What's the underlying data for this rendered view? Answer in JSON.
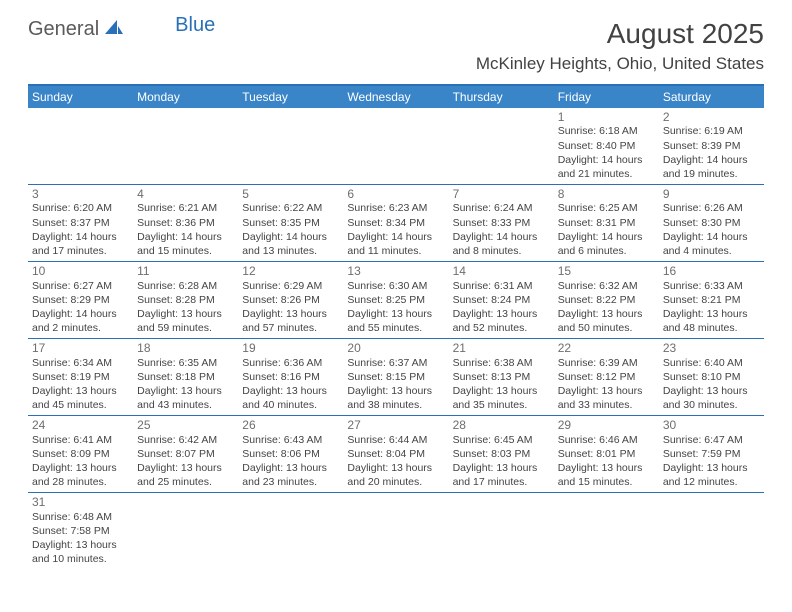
{
  "logo": {
    "text1": "General",
    "text2": "Blue",
    "color_general": "#5a5a5a",
    "color_blue": "#2a70b8"
  },
  "title": "August 2025",
  "location": "McKinley Heights, Ohio, United States",
  "header_bg": "#3a84c8",
  "header_text_color": "#ffffff",
  "border_color": "#2a70b8",
  "day_num_color": "#6e6e6e",
  "day_text_color": "#444444",
  "background_color": "#ffffff",
  "title_color": "#424242",
  "title_fontsize": 28,
  "location_fontsize": 17,
  "dow_fontsize": 12,
  "daynum_fontsize": 12,
  "daytext_fontsize": 10.5,
  "days_of_week": [
    "Sunday",
    "Monday",
    "Tuesday",
    "Wednesday",
    "Thursday",
    "Friday",
    "Saturday"
  ],
  "weeks": [
    [
      {
        "num": "",
        "sunrise": "",
        "sunset": "",
        "daylight": ""
      },
      {
        "num": "",
        "sunrise": "",
        "sunset": "",
        "daylight": ""
      },
      {
        "num": "",
        "sunrise": "",
        "sunset": "",
        "daylight": ""
      },
      {
        "num": "",
        "sunrise": "",
        "sunset": "",
        "daylight": ""
      },
      {
        "num": "",
        "sunrise": "",
        "sunset": "",
        "daylight": ""
      },
      {
        "num": "1",
        "sunrise": "Sunrise: 6:18 AM",
        "sunset": "Sunset: 8:40 PM",
        "daylight": "Daylight: 14 hours and 21 minutes."
      },
      {
        "num": "2",
        "sunrise": "Sunrise: 6:19 AM",
        "sunset": "Sunset: 8:39 PM",
        "daylight": "Daylight: 14 hours and 19 minutes."
      }
    ],
    [
      {
        "num": "3",
        "sunrise": "Sunrise: 6:20 AM",
        "sunset": "Sunset: 8:37 PM",
        "daylight": "Daylight: 14 hours and 17 minutes."
      },
      {
        "num": "4",
        "sunrise": "Sunrise: 6:21 AM",
        "sunset": "Sunset: 8:36 PM",
        "daylight": "Daylight: 14 hours and 15 minutes."
      },
      {
        "num": "5",
        "sunrise": "Sunrise: 6:22 AM",
        "sunset": "Sunset: 8:35 PM",
        "daylight": "Daylight: 14 hours and 13 minutes."
      },
      {
        "num": "6",
        "sunrise": "Sunrise: 6:23 AM",
        "sunset": "Sunset: 8:34 PM",
        "daylight": "Daylight: 14 hours and 11 minutes."
      },
      {
        "num": "7",
        "sunrise": "Sunrise: 6:24 AM",
        "sunset": "Sunset: 8:33 PM",
        "daylight": "Daylight: 14 hours and 8 minutes."
      },
      {
        "num": "8",
        "sunrise": "Sunrise: 6:25 AM",
        "sunset": "Sunset: 8:31 PM",
        "daylight": "Daylight: 14 hours and 6 minutes."
      },
      {
        "num": "9",
        "sunrise": "Sunrise: 6:26 AM",
        "sunset": "Sunset: 8:30 PM",
        "daylight": "Daylight: 14 hours and 4 minutes."
      }
    ],
    [
      {
        "num": "10",
        "sunrise": "Sunrise: 6:27 AM",
        "sunset": "Sunset: 8:29 PM",
        "daylight": "Daylight: 14 hours and 2 minutes."
      },
      {
        "num": "11",
        "sunrise": "Sunrise: 6:28 AM",
        "sunset": "Sunset: 8:28 PM",
        "daylight": "Daylight: 13 hours and 59 minutes."
      },
      {
        "num": "12",
        "sunrise": "Sunrise: 6:29 AM",
        "sunset": "Sunset: 8:26 PM",
        "daylight": "Daylight: 13 hours and 57 minutes."
      },
      {
        "num": "13",
        "sunrise": "Sunrise: 6:30 AM",
        "sunset": "Sunset: 8:25 PM",
        "daylight": "Daylight: 13 hours and 55 minutes."
      },
      {
        "num": "14",
        "sunrise": "Sunrise: 6:31 AM",
        "sunset": "Sunset: 8:24 PM",
        "daylight": "Daylight: 13 hours and 52 minutes."
      },
      {
        "num": "15",
        "sunrise": "Sunrise: 6:32 AM",
        "sunset": "Sunset: 8:22 PM",
        "daylight": "Daylight: 13 hours and 50 minutes."
      },
      {
        "num": "16",
        "sunrise": "Sunrise: 6:33 AM",
        "sunset": "Sunset: 8:21 PM",
        "daylight": "Daylight: 13 hours and 48 minutes."
      }
    ],
    [
      {
        "num": "17",
        "sunrise": "Sunrise: 6:34 AM",
        "sunset": "Sunset: 8:19 PM",
        "daylight": "Daylight: 13 hours and 45 minutes."
      },
      {
        "num": "18",
        "sunrise": "Sunrise: 6:35 AM",
        "sunset": "Sunset: 8:18 PM",
        "daylight": "Daylight: 13 hours and 43 minutes."
      },
      {
        "num": "19",
        "sunrise": "Sunrise: 6:36 AM",
        "sunset": "Sunset: 8:16 PM",
        "daylight": "Daylight: 13 hours and 40 minutes."
      },
      {
        "num": "20",
        "sunrise": "Sunrise: 6:37 AM",
        "sunset": "Sunset: 8:15 PM",
        "daylight": "Daylight: 13 hours and 38 minutes."
      },
      {
        "num": "21",
        "sunrise": "Sunrise: 6:38 AM",
        "sunset": "Sunset: 8:13 PM",
        "daylight": "Daylight: 13 hours and 35 minutes."
      },
      {
        "num": "22",
        "sunrise": "Sunrise: 6:39 AM",
        "sunset": "Sunset: 8:12 PM",
        "daylight": "Daylight: 13 hours and 33 minutes."
      },
      {
        "num": "23",
        "sunrise": "Sunrise: 6:40 AM",
        "sunset": "Sunset: 8:10 PM",
        "daylight": "Daylight: 13 hours and 30 minutes."
      }
    ],
    [
      {
        "num": "24",
        "sunrise": "Sunrise: 6:41 AM",
        "sunset": "Sunset: 8:09 PM",
        "daylight": "Daylight: 13 hours and 28 minutes."
      },
      {
        "num": "25",
        "sunrise": "Sunrise: 6:42 AM",
        "sunset": "Sunset: 8:07 PM",
        "daylight": "Daylight: 13 hours and 25 minutes."
      },
      {
        "num": "26",
        "sunrise": "Sunrise: 6:43 AM",
        "sunset": "Sunset: 8:06 PM",
        "daylight": "Daylight: 13 hours and 23 minutes."
      },
      {
        "num": "27",
        "sunrise": "Sunrise: 6:44 AM",
        "sunset": "Sunset: 8:04 PM",
        "daylight": "Daylight: 13 hours and 20 minutes."
      },
      {
        "num": "28",
        "sunrise": "Sunrise: 6:45 AM",
        "sunset": "Sunset: 8:03 PM",
        "daylight": "Daylight: 13 hours and 17 minutes."
      },
      {
        "num": "29",
        "sunrise": "Sunrise: 6:46 AM",
        "sunset": "Sunset: 8:01 PM",
        "daylight": "Daylight: 13 hours and 15 minutes."
      },
      {
        "num": "30",
        "sunrise": "Sunrise: 6:47 AM",
        "sunset": "Sunset: 7:59 PM",
        "daylight": "Daylight: 13 hours and 12 minutes."
      }
    ],
    [
      {
        "num": "31",
        "sunrise": "Sunrise: 6:48 AM",
        "sunset": "Sunset: 7:58 PM",
        "daylight": "Daylight: 13 hours and 10 minutes."
      },
      {
        "num": "",
        "sunrise": "",
        "sunset": "",
        "daylight": ""
      },
      {
        "num": "",
        "sunrise": "",
        "sunset": "",
        "daylight": ""
      },
      {
        "num": "",
        "sunrise": "",
        "sunset": "",
        "daylight": ""
      },
      {
        "num": "",
        "sunrise": "",
        "sunset": "",
        "daylight": ""
      },
      {
        "num": "",
        "sunrise": "",
        "sunset": "",
        "daylight": ""
      },
      {
        "num": "",
        "sunrise": "",
        "sunset": "",
        "daylight": ""
      }
    ]
  ]
}
